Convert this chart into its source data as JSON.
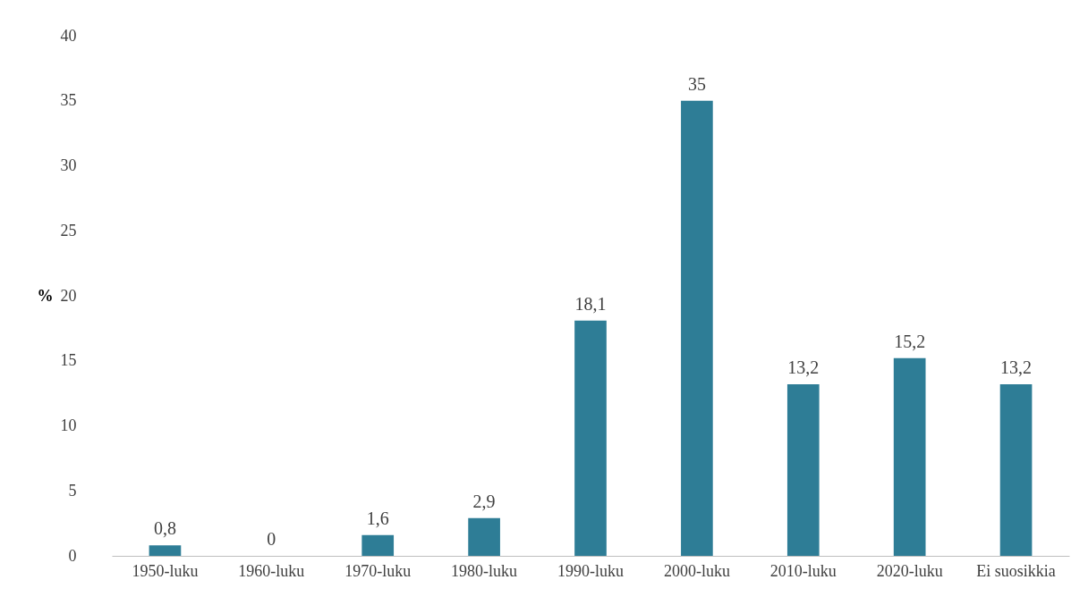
{
  "chart_data": {
    "type": "bar",
    "ylabel": "%",
    "categories": [
      "1950-luku",
      "1960-luku",
      "1970-luku",
      "1980-luku",
      "1990-luku",
      "2000-luku",
      "2010-luku",
      "2020-luku",
      "Ei suosikkia"
    ],
    "values": [
      0.8,
      0,
      1.6,
      2.9,
      18.1,
      35,
      13.2,
      15.2,
      13.2
    ],
    "value_labels": [
      "0,8",
      "0",
      "1,6",
      "2,9",
      "18,1",
      "35",
      "13,2",
      "15,2",
      "13,2"
    ],
    "color": "#2e7d96",
    "ylim": [
      0,
      40
    ],
    "yticks": [
      0,
      5,
      10,
      15,
      20,
      25,
      30,
      35,
      40
    ],
    "grid": false
  }
}
